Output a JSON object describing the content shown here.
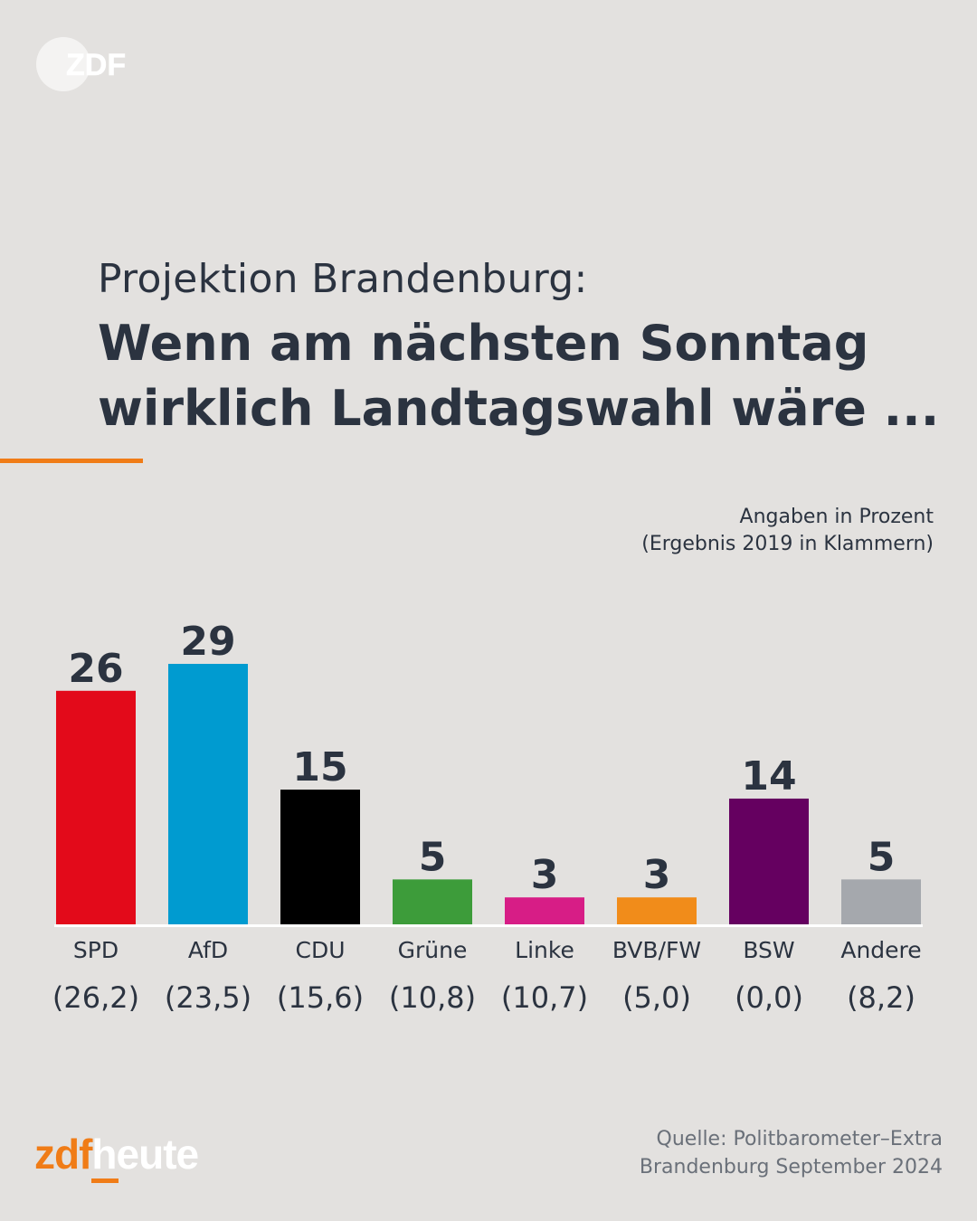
{
  "header": {
    "subtitle": "Projektion Brandenburg:",
    "title": "Wenn am nächsten Sonntag wirklich Landtagswahl wäre ...",
    "note_line1": "Angaben in Prozent",
    "note_line2": "(Ergebnis 2019 in Klammern)"
  },
  "footer": {
    "source_line1": "Quelle: Politbarometer–Extra",
    "source_line2": "Brandenburg September 2024",
    "brand_zdf": "zdf",
    "brand_heute": "heute"
  },
  "logo": {
    "text": "ZDF"
  },
  "colors": {
    "accent": "#f07c17",
    "text": "#2b3340",
    "background": "#e3e1df"
  },
  "chart_data": {
    "type": "bar",
    "categories": [
      "SPD",
      "AfD",
      "CDU",
      "Grüne",
      "Linke",
      "BVB/FW",
      "BSW",
      "Andere"
    ],
    "values": [
      26,
      29,
      15,
      5,
      3,
      3,
      14,
      5
    ],
    "previous_labels": [
      "(26,2)",
      "(23,5)",
      "(15,6)",
      "(10,8)",
      "(10,7)",
      "(5,0)",
      "(0,0)",
      "(8,2)"
    ],
    "colors": [
      "#e30a1a",
      "#009bd0",
      "#000000",
      "#3d9c3a",
      "#d71d86",
      "#f18c1a",
      "#650060",
      "#a5a8ad"
    ],
    "ylim": [
      0,
      29
    ]
  }
}
